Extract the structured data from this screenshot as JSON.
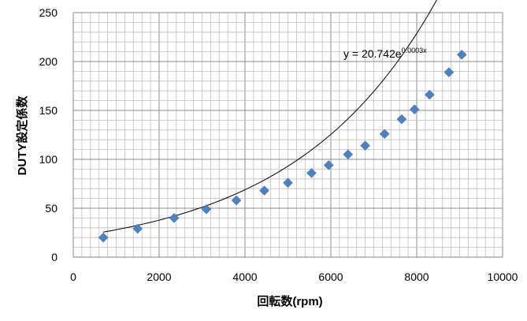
{
  "chart_data": {
    "type": "scatter",
    "title": "",
    "xlabel": "回転数(rpm)",
    "ylabel": "DUTY設定係数",
    "xlim": [
      0,
      10000
    ],
    "ylim": [
      0,
      250
    ],
    "x_ticks": [
      0,
      2000,
      4000,
      6000,
      8000,
      10000
    ],
    "y_ticks": [
      0,
      50,
      100,
      150,
      200,
      250
    ],
    "grid": true,
    "series": [
      {
        "x": [
          700,
          1500,
          2350,
          3100,
          3800,
          4450,
          5000,
          5550,
          5950,
          6400,
          6800,
          7250,
          7650,
          7950,
          8300,
          8750,
          9050
        ],
        "y": [
          20,
          29,
          40,
          49,
          58,
          68,
          76,
          86,
          94,
          105,
          114,
          126,
          141,
          151,
          166,
          189,
          207
        ],
        "marker": "diamond",
        "color": "#4F81BD"
      }
    ],
    "trendline": {
      "type": "exponential",
      "a": 20.742,
      "b": 0.0003,
      "x_range": [
        700,
        9050
      ],
      "color": "#000000",
      "equation_main": "y = 20.742e",
      "equation_exp": "0.0003x"
    },
    "colors": {
      "marker": "#4F81BD",
      "grid": "#bfbfbf",
      "axis": "#868686",
      "text": "#000000"
    }
  }
}
